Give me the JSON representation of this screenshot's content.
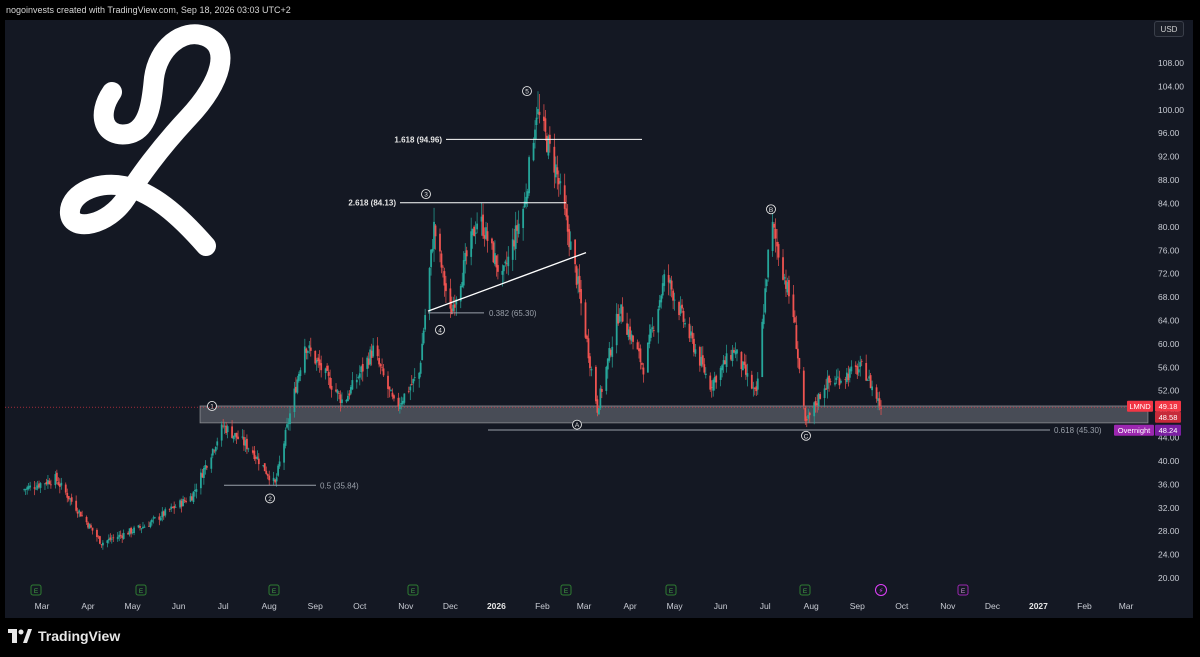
{
  "header": {
    "attribution": "nogoinvests created with TradingView.com, Sep 18, 2026 03:03 UTC+2"
  },
  "currency_button": "USD",
  "brand": {
    "footer_logo_text": "TradingView",
    "logo_icon": "tradingview-logo-icon",
    "ticker_logo_icon": "lemonade-logo-icon"
  },
  "colors": {
    "background": "#141823",
    "up": "#26a69a",
    "down": "#ef5350",
    "zone": "#d1d4dc",
    "overnight": "#9c27b0",
    "price_tag": "#f23645"
  },
  "price_axis": {
    "ticks": [
      "108.00",
      "104.00",
      "100.00",
      "96.00",
      "92.00",
      "88.00",
      "84.00",
      "80.00",
      "76.00",
      "72.00",
      "68.00",
      "64.00",
      "60.00",
      "56.00",
      "52.00",
      "48.00",
      "44.00",
      "40.00",
      "36.00",
      "32.00",
      "28.00",
      "24.00",
      "20.00"
    ]
  },
  "price_tags": {
    "ticker": "LMND",
    "last": "49.18",
    "second": "48.58",
    "overnight_label": "Overnight",
    "overnight_value": "48.24"
  },
  "time_axis": {
    "labels": [
      "Mar",
      "Apr",
      "May",
      "Jun",
      "Jul",
      "Aug",
      "Sep",
      "Oct",
      "Nov",
      "Dec",
      "2026",
      "Feb",
      "Mar",
      "Apr",
      "May",
      "Jun",
      "Jul",
      "Aug",
      "Sep",
      "Oct",
      "Nov",
      "Dec",
      "2027",
      "Feb",
      "Mar"
    ]
  },
  "annotations": {
    "fib_1618": "1.618 (94.96)",
    "fib_2618": "2.618 (84.13)",
    "fib_0382": "0.382 (65.30)",
    "fib_05": "0.5 (35.84)",
    "fib_0618": "0.618 (45.30)",
    "wave_1": "1",
    "wave_2": "2",
    "wave_3": "3",
    "wave_4": "4",
    "wave_5": "5",
    "wave_A": "A",
    "wave_B": "B",
    "wave_C": "C",
    "earnings_marker": "E",
    "dividend_marker": "⚡"
  },
  "chart_data": {
    "type": "candlestick",
    "ylim": [
      18,
      112
    ],
    "y_ticks": [
      108,
      104,
      100,
      96,
      92,
      88,
      84,
      80,
      76,
      72,
      68,
      64,
      60,
      56,
      52,
      48,
      44,
      40,
      36,
      32,
      28,
      24,
      20
    ],
    "series": [
      {
        "name": "LMND",
        "approx_close_path": [
          {
            "date": "2025-02-15",
            "close": 35
          },
          {
            "date": "2025-03-10",
            "close": 37
          },
          {
            "date": "2025-04-10",
            "close": 26
          },
          {
            "date": "2025-05-10",
            "close": 29
          },
          {
            "date": "2025-06-10",
            "close": 34
          },
          {
            "date": "2025-07-01",
            "close": 46
          },
          {
            "date": "2025-07-20",
            "close": 42
          },
          {
            "date": "2025-08-05",
            "close": 36
          },
          {
            "date": "2025-08-25",
            "close": 60
          },
          {
            "date": "2025-09-20",
            "close": 50
          },
          {
            "date": "2025-10-10",
            "close": 59
          },
          {
            "date": "2025-10-25",
            "close": 49
          },
          {
            "date": "2025-11-10",
            "close": 55
          },
          {
            "date": "2025-11-20",
            "close": 80
          },
          {
            "date": "2025-12-01",
            "close": 65
          },
          {
            "date": "2025-12-20",
            "close": 82
          },
          {
            "date": "2026-01-05",
            "close": 71
          },
          {
            "date": "2026-01-20",
            "close": 84
          },
          {
            "date": "2026-01-28",
            "close": 100
          },
          {
            "date": "2026-02-10",
            "close": 90
          },
          {
            "date": "2026-02-25",
            "close": 70
          },
          {
            "date": "2026-03-10",
            "close": 49
          },
          {
            "date": "2026-03-25",
            "close": 66
          },
          {
            "date": "2026-04-10",
            "close": 56
          },
          {
            "date": "2026-04-25",
            "close": 72
          },
          {
            "date": "2026-05-10",
            "close": 62
          },
          {
            "date": "2026-05-25",
            "close": 53
          },
          {
            "date": "2026-06-10",
            "close": 59
          },
          {
            "date": "2026-06-25",
            "close": 51
          },
          {
            "date": "2026-07-05",
            "close": 81
          },
          {
            "date": "2026-07-20",
            "close": 65
          },
          {
            "date": "2026-07-28",
            "close": 46
          },
          {
            "date": "2026-08-10",
            "close": 53
          },
          {
            "date": "2026-09-05",
            "close": 56
          },
          {
            "date": "2026-09-17",
            "close": 49.18
          }
        ]
      }
    ],
    "support_zone": [
      46.5,
      49.4
    ],
    "fib_levels": [
      {
        "label": "1.618 (94.96)",
        "value": 94.96
      },
      {
        "label": "2.618 (84.13)",
        "value": 84.13
      },
      {
        "label": "0.382 (65.30)",
        "value": 65.3
      },
      {
        "label": "0.5 (35.84)",
        "value": 35.84
      },
      {
        "label": "0.618 (45.30)",
        "value": 45.3
      }
    ],
    "wave_labels": [
      "1",
      "2",
      "3",
      "4",
      "5",
      "A",
      "B",
      "C"
    ]
  }
}
